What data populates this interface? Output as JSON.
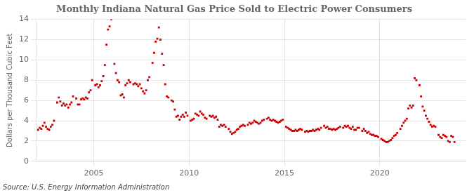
{
  "chart_data": {
    "type": "scatter",
    "title": "Monthly Indiana Natural Gas Price Sold to Electric Power Consumers",
    "ylabel": "Dollars per Thousand Cubic Feet",
    "source": "Source: U.S. Energy Information Administration",
    "color": "#cc0000",
    "marker": "square",
    "grid": true,
    "xlim": [
      2002.0,
      2024.5
    ],
    "xticks": [
      2005,
      2010,
      2015,
      2020
    ],
    "ylim": [
      0,
      14
    ],
    "yticks": [
      0,
      2,
      4,
      6,
      8,
      10,
      12,
      14
    ],
    "x": [
      2002.083,
      2002.167,
      2002.25,
      2002.333,
      2002.417,
      2002.5,
      2002.583,
      2002.667,
      2002.75,
      2002.833,
      2002.917,
      2003.083,
      2003.167,
      2003.25,
      2003.333,
      2003.417,
      2003.5,
      2003.583,
      2003.667,
      2003.75,
      2003.833,
      2003.917,
      2004.083,
      2004.167,
      2004.25,
      2004.333,
      2004.417,
      2004.5,
      2004.583,
      2004.667,
      2004.75,
      2004.833,
      2004.917,
      2005.083,
      2005.167,
      2005.25,
      2005.333,
      2005.417,
      2005.5,
      2005.583,
      2005.667,
      2005.75,
      2005.833,
      2005.917,
      2006.083,
      2006.167,
      2006.25,
      2006.333,
      2006.417,
      2006.5,
      2006.583,
      2006.667,
      2006.75,
      2006.833,
      2006.917,
      2007.083,
      2007.167,
      2007.25,
      2007.333,
      2007.417,
      2007.5,
      2007.583,
      2007.667,
      2007.75,
      2007.833,
      2007.917,
      2008.083,
      2008.167,
      2008.25,
      2008.333,
      2008.417,
      2008.5,
      2008.583,
      2008.667,
      2008.75,
      2008.833,
      2008.917,
      2009.083,
      2009.167,
      2009.25,
      2009.333,
      2009.417,
      2009.5,
      2009.583,
      2009.667,
      2009.75,
      2009.833,
      2009.917,
      2010.083,
      2010.167,
      2010.25,
      2010.333,
      2010.417,
      2010.5,
      2010.583,
      2010.667,
      2010.75,
      2010.833,
      2010.917,
      2011.083,
      2011.167,
      2011.25,
      2011.333,
      2011.417,
      2011.5,
      2011.583,
      2011.667,
      2011.75,
      2011.833,
      2011.917,
      2012.083,
      2012.167,
      2012.25,
      2012.333,
      2012.417,
      2012.5,
      2012.583,
      2012.667,
      2012.75,
      2012.833,
      2012.917,
      2013.083,
      2013.167,
      2013.25,
      2013.333,
      2013.417,
      2013.5,
      2013.583,
      2013.667,
      2013.75,
      2013.833,
      2013.917,
      2014.083,
      2014.167,
      2014.25,
      2014.333,
      2014.417,
      2014.5,
      2014.583,
      2014.667,
      2014.75,
      2014.833,
      2014.917,
      2015.083,
      2015.167,
      2015.25,
      2015.333,
      2015.417,
      2015.5,
      2015.583,
      2015.667,
      2015.75,
      2015.833,
      2015.917,
      2016.083,
      2016.167,
      2016.25,
      2016.333,
      2016.417,
      2016.5,
      2016.583,
      2016.667,
      2016.75,
      2016.833,
      2016.917,
      2017.083,
      2017.167,
      2017.25,
      2017.333,
      2017.417,
      2017.5,
      2017.583,
      2017.667,
      2017.75,
      2017.833,
      2017.917,
      2018.083,
      2018.167,
      2018.25,
      2018.333,
      2018.417,
      2018.5,
      2018.583,
      2018.667,
      2018.75,
      2018.833,
      2018.917,
      2019.083,
      2019.167,
      2019.25,
      2019.333,
      2019.417,
      2019.5,
      2019.583,
      2019.667,
      2019.75,
      2019.833,
      2019.917,
      2020.083,
      2020.167,
      2020.25,
      2020.333,
      2020.417,
      2020.5,
      2020.583,
      2020.667,
      2020.75,
      2020.833,
      2020.917,
      2021.083,
      2021.167,
      2021.25,
      2021.333,
      2021.417,
      2021.5,
      2021.583,
      2021.667,
      2021.75,
      2021.833,
      2021.917,
      2022.083,
      2022.167,
      2022.25,
      2022.333,
      2022.417,
      2022.5,
      2022.583,
      2022.667,
      2022.75,
      2022.833,
      2022.917,
      2023.083,
      2023.167,
      2023.25,
      2023.333,
      2023.417,
      2023.5,
      2023.583,
      2023.667,
      2023.75,
      2023.833,
      2023.917
    ],
    "values": [
      3.1,
      3.3,
      3.2,
      3.5,
      3.8,
      3.4,
      3.2,
      3.1,
      3.4,
      3.6,
      4.0,
      5.8,
      6.3,
      5.9,
      5.5,
      5.7,
      5.5,
      5.6,
      5.3,
      5.6,
      5.8,
      6.4,
      6.2,
      5.6,
      5.6,
      6.1,
      6.2,
      6.1,
      6.3,
      6.2,
      6.8,
      7.0,
      8.0,
      7.5,
      7.6,
      7.3,
      7.5,
      7.9,
      8.4,
      9.5,
      11.5,
      13.0,
      13.3,
      14.0,
      9.6,
      8.7,
      8.0,
      7.8,
      6.5,
      6.6,
      6.3,
      7.5,
      7.7,
      8.0,
      7.8,
      7.6,
      7.7,
      7.6,
      7.4,
      7.6,
      7.2,
      6.9,
      6.7,
      7.0,
      8.0,
      8.3,
      9.7,
      10.7,
      11.8,
      12.1,
      13.2,
      12.0,
      10.6,
      9.5,
      7.6,
      6.4,
      6.3,
      6.0,
      5.9,
      5.1,
      4.4,
      4.5,
      4.1,
      4.4,
      4.6,
      4.4,
      4.8,
      4.5,
      4.0,
      4.1,
      4.2,
      4.7,
      4.6,
      4.5,
      4.9,
      4.7,
      4.6,
      4.3,
      4.2,
      4.5,
      4.4,
      4.5,
      4.3,
      4.4,
      4.1,
      3.4,
      3.6,
      3.5,
      3.6,
      3.4,
      3.2,
      2.9,
      2.7,
      2.8,
      2.9,
      3.1,
      3.2,
      3.4,
      3.5,
      3.6,
      3.5,
      3.6,
      3.8,
      3.7,
      3.8,
      4.0,
      3.9,
      3.8,
      3.7,
      3.8,
      4.0,
      4.1,
      4.2,
      4.3,
      4.1,
      4.0,
      4.1,
      4.0,
      3.9,
      3.8,
      3.9,
      4.0,
      4.1,
      3.4,
      3.3,
      3.2,
      3.1,
      3.0,
      3.0,
      3.1,
      3.0,
      3.1,
      3.2,
      3.1,
      2.9,
      3.0,
      2.9,
      3.0,
      3.0,
      3.1,
      3.0,
      3.1,
      3.2,
      3.1,
      3.3,
      3.5,
      3.3,
      3.4,
      3.2,
      3.2,
      3.1,
      3.2,
      3.1,
      3.2,
      3.3,
      3.4,
      3.3,
      3.5,
      3.4,
      3.5,
      3.3,
      3.2,
      3.4,
      3.1,
      3.1,
      3.3,
      3.3,
      3.0,
      3.2,
      3.0,
      2.8,
      2.9,
      2.7,
      2.6,
      2.6,
      2.5,
      2.5,
      2.4,
      2.2,
      2.1,
      2.0,
      1.9,
      1.9,
      2.0,
      2.1,
      2.3,
      2.5,
      2.6,
      2.8,
      3.2,
      3.5,
      3.8,
      4.0,
      4.2,
      5.2,
      5.5,
      5.3,
      5.5,
      8.2,
      8.0,
      7.5,
      6.4,
      5.4,
      5.0,
      4.5,
      4.2,
      3.9,
      3.6,
      3.4,
      3.5,
      3.4,
      2.6,
      2.4,
      2.3,
      2.6,
      2.5,
      2.4,
      2.0,
      1.9,
      2.5,
      2.4,
      1.9
    ]
  }
}
